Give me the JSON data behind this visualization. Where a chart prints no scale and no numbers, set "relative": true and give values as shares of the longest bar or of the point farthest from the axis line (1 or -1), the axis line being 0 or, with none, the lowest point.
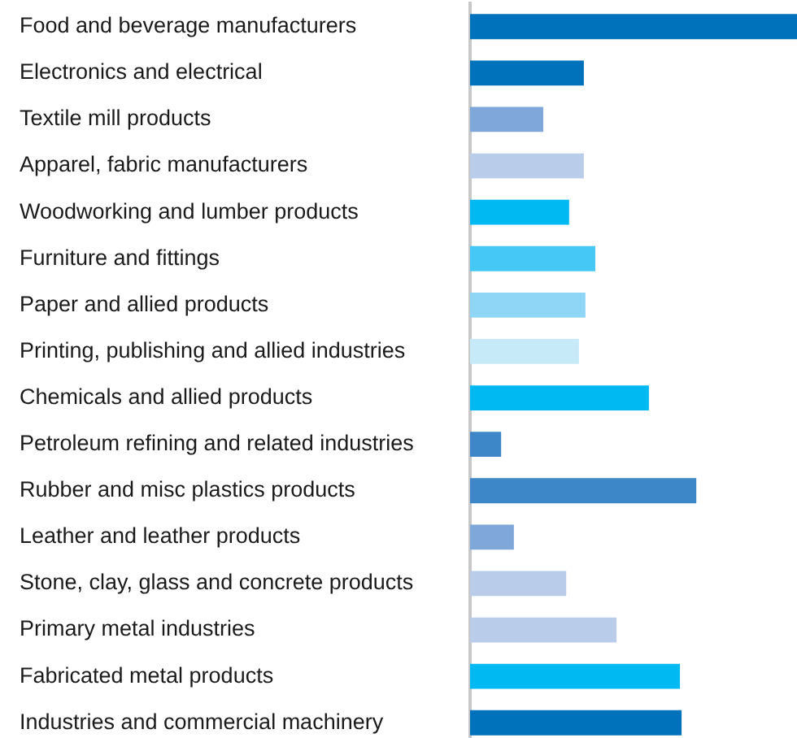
{
  "chart_data": {
    "type": "bar",
    "orientation": "horizontal",
    "relative": true,
    "categories": [
      "Food and beverage manufacturers",
      "Electronics and electrical",
      "Textile mill products",
      "Apparel, fabric manufacturers",
      "Woodworking and lumber products",
      "Furniture and fittings",
      "Paper and allied products",
      "Printing, publishing and allied industries",
      "Chemicals and allied products",
      "Petroleum refining and related industries",
      "Rubber and misc plastics products",
      "Leather and leather products",
      "Stone, clay, glass and concrete products",
      "Primary metal industries",
      "Fabricated metal products",
      "Industries and commercial machinery"
    ],
    "values": [
      1,
      0.348,
      0.224,
      0.348,
      0.303,
      0.383,
      0.353,
      0.333,
      0.547,
      0.095,
      0.692,
      0.134,
      0.294,
      0.448,
      0.642,
      0.647
    ],
    "colors": [
      "#0072bc",
      "#0072bc",
      "#7fa7d9",
      "#b9cdeb",
      "#00b9f2",
      "#45c8f5",
      "#8fd6f6",
      "#c6eaf8",
      "#00b9f2",
      "#3d87c8",
      "#3d87c8",
      "#7fa7d9",
      "#b9cdeb",
      "#b9cdeb",
      "#00b9f2",
      "#0072bc"
    ]
  }
}
